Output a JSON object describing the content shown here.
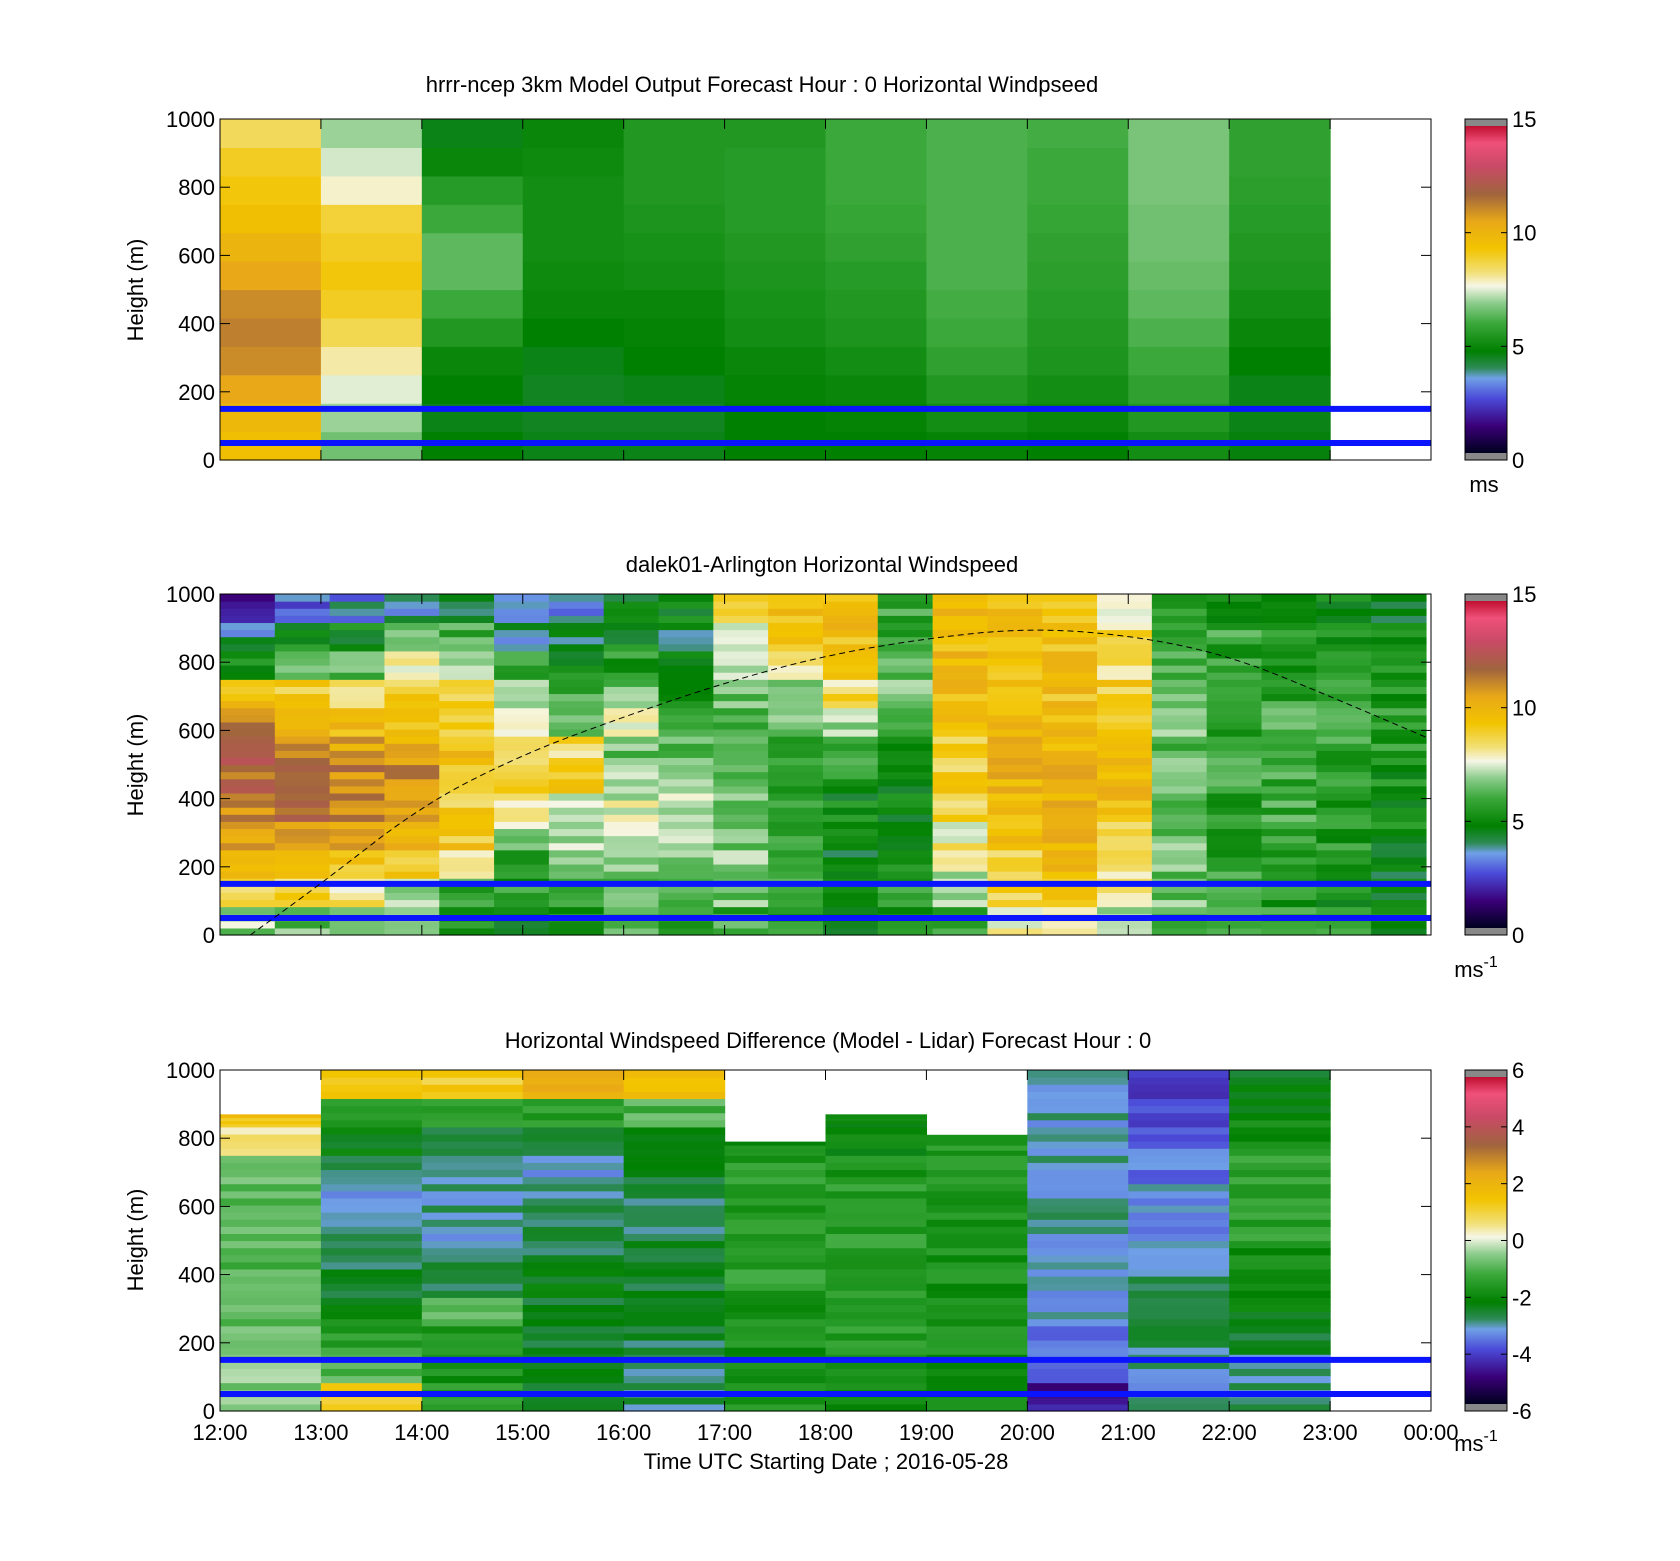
{
  "chart_data": [
    {
      "type": "heatmap",
      "title": "hrrr-ncep 3km Model Output   Forecast Hour : 0 Horizontal Windpseed",
      "ylabel": "Height (m)",
      "xlabel": "",
      "ylim": [
        0,
        1000
      ],
      "yticks": [
        "0",
        "200",
        "400",
        "600",
        "800",
        "1000"
      ],
      "xticks": [
        "12:00",
        "13:00",
        "14:00",
        "15:00",
        "16:00",
        "17:00",
        "18:00",
        "19:00",
        "20:00",
        "21:00",
        "22:00",
        "23:00",
        "00:00"
      ],
      "show_xtick_labels": false,
      "colorbar": {
        "min": 0,
        "max": 15,
        "ticks": [
          "0",
          "5",
          "10",
          "15"
        ],
        "label": "ms",
        "label_sup": ""
      },
      "reference_heights": [
        150,
        50
      ],
      "columns": [
        [
          9.5,
          9.8,
          10.5,
          11.0,
          11.2,
          11.0,
          10.5,
          10.0,
          9.5,
          9.2,
          9.0,
          8.5
        ],
        [
          6.6,
          7.0,
          7.5,
          8.0,
          8.6,
          9.0,
          9.2,
          9.0,
          8.8,
          7.8,
          7.4,
          7.0
        ],
        [
          4.8,
          4.6,
          4.8,
          5.0,
          5.5,
          6.0,
          6.4,
          6.4,
          6.0,
          5.6,
          5.0,
          4.6
        ],
        [
          4.6,
          4.5,
          4.5,
          4.6,
          4.8,
          5.0,
          5.1,
          5.2,
          5.2,
          5.2,
          5.1,
          5.0
        ],
        [
          4.6,
          4.5,
          4.6,
          4.8,
          4.9,
          5.0,
          5.2,
          5.3,
          5.4,
          5.5,
          5.5,
          5.5
        ],
        [
          4.8,
          4.8,
          4.9,
          5.0,
          5.2,
          5.3,
          5.4,
          5.5,
          5.6,
          5.6,
          5.6,
          5.5
        ],
        [
          4.8,
          4.9,
          5.0,
          5.2,
          5.4,
          5.5,
          5.6,
          5.8,
          5.9,
          6.0,
          6.0,
          6.0
        ],
        [
          4.9,
          5.2,
          5.5,
          5.8,
          6.0,
          6.1,
          6.2,
          6.2,
          6.2,
          6.2,
          6.2,
          6.2
        ],
        [
          4.8,
          5.0,
          5.2,
          5.4,
          5.5,
          5.6,
          5.7,
          5.8,
          5.9,
          6.0,
          6.0,
          6.1
        ],
        [
          5.2,
          5.5,
          5.8,
          6.0,
          6.2,
          6.4,
          6.5,
          6.6,
          6.6,
          6.7,
          6.7,
          6.7
        ],
        [
          4.7,
          4.6,
          4.6,
          4.8,
          5.0,
          5.2,
          5.4,
          5.5,
          5.6,
          5.7,
          5.8,
          5.8
        ]
      ]
    },
    {
      "type": "heatmap",
      "title": "dalek01-Arlington  Horizontal Windspeed",
      "ylabel": "Height (m)",
      "xlabel": "",
      "ylim": [
        0,
        1000
      ],
      "yticks": [
        "0",
        "200",
        "400",
        "600",
        "800",
        "1000"
      ],
      "xticks": [
        "12:00",
        "13:00",
        "14:00",
        "15:00",
        "16:00",
        "17:00",
        "18:00",
        "19:00",
        "20:00",
        "21:00",
        "22:00",
        "23:00",
        "00:00"
      ],
      "show_xtick_labels": false,
      "colorbar": {
        "min": 0,
        "max": 15,
        "ticks": [
          "0",
          "5",
          "10",
          "15"
        ],
        "label": "ms",
        "label_sup": "-1"
      },
      "reference_heights": [
        150,
        50
      ],
      "overlay_curve": {
        "style": "dashed",
        "x_hours": [
          12.3,
          13,
          14,
          15,
          16,
          17,
          18,
          19,
          20,
          21,
          22,
          23,
          23.95
        ],
        "heights": [
          0,
          150,
          380,
          530,
          640,
          740,
          820,
          870,
          900,
          880,
          820,
          700,
          580
        ]
      },
      "columns": [
        [
          7.0,
          8.5,
          9.5,
          10.5,
          11.2,
          11.6,
          11.8,
          11.0,
          9.5,
          5.0,
          4.0,
          2.0
        ],
        [
          6.5,
          8.6,
          9.8,
          10.8,
          11.4,
          11.6,
          11.0,
          10.0,
          9.0,
          7.0,
          5.0,
          3.0
        ],
        [
          6.0,
          8.4,
          9.5,
          10.5,
          11.0,
          11.2,
          10.5,
          9.5,
          8.5,
          6.5,
          5.0,
          3.5
        ],
        [
          6.2,
          7.0,
          9.0,
          9.8,
          10.5,
          10.8,
          10.0,
          9.5,
          8.8,
          8.0,
          6.5,
          4.0
        ],
        [
          5.5,
          6.0,
          7.5,
          9.2,
          9.0,
          9.5,
          9.5,
          9.0,
          8.5,
          7.5,
          6.0,
          4.5
        ],
        [
          5.0,
          5.5,
          6.0,
          7.0,
          7.8,
          8.5,
          8.5,
          7.5,
          6.5,
          5.5,
          4.0,
          3.0
        ],
        [
          5.5,
          5.5,
          6.5,
          7.0,
          7.5,
          9.0,
          8.5,
          7.0,
          6.0,
          5.0,
          4.5,
          3.5
        ],
        [
          6.0,
          6.5,
          7.0,
          7.5,
          7.5,
          7.0,
          6.5,
          7.5,
          6.5,
          5.5,
          5.0,
          4.5
        ],
        [
          6.0,
          6.5,
          7.0,
          7.0,
          7.0,
          6.5,
          6.5,
          6.0,
          5.5,
          5.0,
          4.5,
          5.0
        ],
        [
          6.0,
          6.5,
          7.0,
          6.5,
          6.5,
          6.0,
          5.8,
          6.0,
          6.5,
          7.0,
          8.0,
          8.5
        ],
        [
          5.5,
          6.0,
          6.0,
          5.8,
          5.5,
          5.5,
          6.0,
          6.5,
          7.0,
          8.5,
          9.5,
          9.5
        ],
        [
          5.0,
          4.8,
          4.6,
          4.8,
          5.0,
          5.5,
          6.0,
          7.0,
          8.5,
          9.2,
          9.5,
          9.5
        ],
        [
          5.5,
          5.5,
          5.0,
          5.0,
          5.0,
          5.0,
          5.5,
          6.0,
          6.5,
          6.0,
          6.0,
          6.0
        ],
        [
          6.0,
          7.0,
          7.5,
          8.0,
          8.5,
          9.0,
          9.0,
          9.5,
          9.5,
          9.8,
          9.5,
          9.5
        ],
        [
          8.0,
          8.5,
          9.0,
          9.5,
          9.8,
          10.0,
          10.0,
          10.0,
          9.8,
          9.5,
          9.5,
          9.5
        ],
        [
          8.0,
          9.0,
          9.5,
          9.8,
          10.0,
          10.2,
          10.0,
          9.8,
          9.5,
          9.5,
          9.5,
          9.5
        ],
        [
          7.5,
          8.0,
          8.5,
          9.0,
          9.5,
          9.8,
          9.8,
          9.5,
          9.0,
          8.5,
          8.5,
          8.0
        ],
        [
          6.5,
          6.5,
          6.5,
          6.5,
          6.5,
          6.5,
          6.5,
          6.5,
          6.5,
          6.5,
          6.0,
          6.0
        ],
        [
          5.8,
          5.8,
          5.8,
          5.8,
          5.8,
          5.8,
          5.8,
          5.8,
          5.8,
          5.8,
          5.8,
          5.5
        ],
        [
          5.8,
          5.5,
          5.8,
          6.0,
          6.0,
          6.0,
          6.0,
          6.0,
          5.8,
          5.5,
          5.5,
          5.5
        ],
        [
          5.5,
          5.2,
          5.2,
          5.5,
          5.5,
          5.8,
          5.8,
          5.8,
          5.8,
          5.5,
          5.2,
          5.0
        ],
        [
          5.0,
          4.8,
          4.8,
          5.0,
          5.2,
          5.2,
          5.5,
          5.5,
          5.5,
          5.2,
          5.0,
          4.8
        ]
      ]
    },
    {
      "type": "heatmap",
      "title": "Horizontal Windspeed Difference (Model - Lidar) Forecast Hour : 0",
      "ylabel": "Height (m)",
      "xlabel": "Time UTC  Starting Date ; 2016-05-28",
      "ylim": [
        0,
        1000
      ],
      "yticks": [
        "0",
        "200",
        "400",
        "600",
        "800",
        "1000"
      ],
      "xticks": [
        "12:00",
        "13:00",
        "14:00",
        "15:00",
        "16:00",
        "17:00",
        "18:00",
        "19:00",
        "20:00",
        "21:00",
        "22:00",
        "23:00",
        "00:00"
      ],
      "show_xtick_labels": true,
      "colorbar": {
        "min": -6,
        "max": 6,
        "ticks": [
          "-6",
          "-4",
          "-2",
          "0",
          "2",
          "4",
          "6"
        ],
        "label": "ms",
        "label_sup": "-1"
      },
      "reference_heights": [
        150,
        50
      ],
      "column_tops": [
        870,
        1000,
        1000,
        1000,
        1000,
        790,
        870,
        810,
        1000,
        1000,
        1000
      ],
      "columns": [
        [
          -0.5,
          -0.6,
          -0.8,
          -1.0,
          -1.0,
          -1.0,
          -0.8,
          -0.8,
          -0.5,
          0.5,
          1.5,
          2.5
        ],
        [
          1.0,
          -1.0,
          -1.5,
          -2.0,
          -2.5,
          -2.8,
          -3.0,
          -3.0,
          -2.8,
          -2.2,
          -1.5,
          1.5
        ],
        [
          -1.5,
          -1.8,
          -1.5,
          -1.0,
          -2.5,
          -2.8,
          -3.0,
          -3.0,
          -3.2,
          -2.5,
          -1.5,
          1.2
        ],
        [
          -2.5,
          -2.5,
          -2.5,
          -2.5,
          -2.2,
          -2.5,
          -2.5,
          -2.8,
          -3.0,
          -2.5,
          -1.5,
          2.0
        ],
        [
          -2.8,
          -2.8,
          -2.6,
          -2.5,
          -2.5,
          -2.5,
          -2.8,
          -2.8,
          -2.5,
          -2.0,
          -1.0,
          1.8
        ],
        [
          -1.5,
          -1.8,
          -1.8,
          -1.8,
          -1.5,
          -1.5,
          -1.5,
          -1.5,
          -1.5,
          -1.8,
          -2.0,
          -2.0
        ],
        [
          -2.0,
          -1.5,
          -1.5,
          -1.5,
          -1.5,
          -1.5,
          -1.5,
          -1.5,
          -1.8,
          -2.0,
          -2.2,
          -2.2
        ],
        [
          -2.0,
          -1.8,
          -1.8,
          -1.8,
          -1.8,
          -1.8,
          -1.8,
          -1.5,
          -1.5,
          -1.5,
          -1.5,
          -1.5
        ],
        [
          -4.5,
          -3.5,
          -3.5,
          -3.0,
          -3.0,
          -3.0,
          -3.0,
          -3.0,
          -3.0,
          -3.0,
          -3.0,
          -3.0
        ],
        [
          -3.0,
          -3.0,
          -2.8,
          -2.8,
          -2.8,
          -3.0,
          -3.2,
          -3.2,
          -3.5,
          -3.6,
          -3.8,
          -4.0
        ],
        [
          -2.8,
          -2.8,
          -2.5,
          -2.2,
          -2.0,
          -1.8,
          -1.5,
          -1.5,
          -1.5,
          -1.8,
          -2.0,
          -2.2
        ]
      ]
    }
  ]
}
